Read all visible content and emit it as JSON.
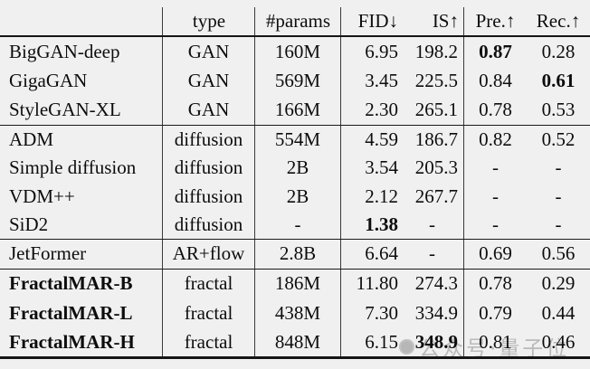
{
  "table": {
    "headers": [
      "",
      "type",
      "#params",
      "FID↓",
      "IS↑",
      "Pre.↑",
      "Rec.↑"
    ],
    "sections": [
      {
        "group": "gan",
        "rows": [
          {
            "cells": [
              "BigGAN-deep",
              "GAN",
              "160M",
              "6.95",
              "198.2",
              "0.87",
              "0.28"
            ],
            "bold": [
              5
            ]
          },
          {
            "cells": [
              "GigaGAN",
              "GAN",
              "569M",
              "3.45",
              "225.5",
              "0.84",
              "0.61"
            ],
            "bold": [
              6
            ]
          },
          {
            "cells": [
              "StyleGAN-XL",
              "GAN",
              "166M",
              "2.30",
              "265.1",
              "0.78",
              "0.53"
            ],
            "bold": []
          }
        ]
      },
      {
        "group": "diffusion",
        "rows": [
          {
            "cells": [
              "ADM",
              "diffusion",
              "554M",
              "4.59",
              "186.7",
              "0.82",
              "0.52"
            ],
            "bold": []
          },
          {
            "cells": [
              "Simple diffusion",
              "diffusion",
              "2B",
              "3.54",
              "205.3",
              "-",
              "-"
            ],
            "bold": []
          },
          {
            "cells": [
              "VDM++",
              "diffusion",
              "2B",
              "2.12",
              "267.7",
              "-",
              "-"
            ],
            "bold": []
          },
          {
            "cells": [
              "SiD2",
              "diffusion",
              "-",
              "1.38",
              "-",
              "-",
              "-"
            ],
            "bold": [
              3
            ]
          }
        ]
      },
      {
        "group": "ar-flow",
        "rows": [
          {
            "cells": [
              "JetFormer",
              "AR+flow",
              "2.8B",
              "6.64",
              "-",
              "0.69",
              "0.56"
            ],
            "bold": []
          }
        ]
      },
      {
        "group": "fractal",
        "rows": [
          {
            "cells": [
              "FractalMAR-B",
              "fractal",
              "186M",
              "11.80",
              "274.3",
              "0.78",
              "0.29"
            ],
            "bold": [
              0
            ]
          },
          {
            "cells": [
              "FractalMAR-L",
              "fractal",
              "438M",
              "7.30",
              "334.9",
              "0.79",
              "0.44"
            ],
            "bold": [
              0
            ]
          },
          {
            "cells": [
              "FractalMAR-H",
              "fractal",
              "848M",
              "6.15",
              "348.9",
              "0.81",
              "0.46"
            ],
            "bold": [
              0,
              4
            ]
          }
        ]
      }
    ]
  },
  "watermark": {
    "text": "公众号·量子位",
    "logo": "qbit-logo",
    "color": "#8f8f8f"
  },
  "colors": {
    "background": "#f0f0f0",
    "text": "#0d0d0d",
    "rule": "#151515"
  }
}
